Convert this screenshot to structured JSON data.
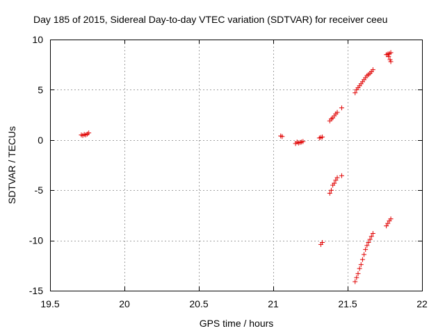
{
  "chart_data": {
    "type": "scatter",
    "title": "Day 185 of 2015, Sidereal Day-to-day VTEC variation (SDTVAR) for receiver ceeu",
    "xlabel": "GPS time / hours",
    "ylabel": "SDTVAR / TECUs",
    "xlim": [
      19.5,
      22
    ],
    "ylim": [
      -15,
      10
    ],
    "xticks": [
      19.5,
      20,
      20.5,
      21,
      21.5,
      22
    ],
    "xtick_labels": [
      "19.5",
      "20",
      "20.5",
      "21",
      "21.5",
      "22"
    ],
    "yticks": [
      -15,
      -10,
      -5,
      0,
      5,
      10
    ],
    "ytick_labels": [
      "-15",
      "-10",
      "-5",
      "0",
      "5",
      "10"
    ],
    "grid": true,
    "marker": "+",
    "marker_color": "#e00000",
    "series": [
      {
        "name": "SDTVAR",
        "points": [
          [
            19.71,
            0.5
          ],
          [
            19.72,
            0.45
          ],
          [
            19.73,
            0.55
          ],
          [
            19.74,
            0.5
          ],
          [
            19.75,
            0.6
          ],
          [
            19.76,
            0.7
          ],
          [
            21.05,
            0.4
          ],
          [
            21.06,
            0.35
          ],
          [
            21.15,
            -0.35
          ],
          [
            21.16,
            -0.2
          ],
          [
            21.17,
            -0.3
          ],
          [
            21.18,
            -0.25
          ],
          [
            21.19,
            -0.2
          ],
          [
            21.2,
            -0.15
          ],
          [
            21.31,
            0.2
          ],
          [
            21.32,
            0.25
          ],
          [
            21.33,
            0.3
          ],
          [
            21.38,
            1.9
          ],
          [
            21.39,
            2.1
          ],
          [
            21.4,
            2.2
          ],
          [
            21.41,
            2.4
          ],
          [
            21.42,
            2.6
          ],
          [
            21.43,
            2.75
          ],
          [
            21.46,
            3.2
          ],
          [
            21.55,
            4.7
          ],
          [
            21.56,
            5.0
          ],
          [
            21.57,
            5.2
          ],
          [
            21.58,
            5.4
          ],
          [
            21.59,
            5.6
          ],
          [
            21.6,
            5.8
          ],
          [
            21.61,
            6.0
          ],
          [
            21.62,
            6.2
          ],
          [
            21.63,
            6.4
          ],
          [
            21.64,
            6.5
          ],
          [
            21.65,
            6.65
          ],
          [
            21.66,
            6.8
          ],
          [
            21.67,
            7.0
          ],
          [
            21.76,
            8.5
          ],
          [
            21.77,
            8.55
          ],
          [
            21.78,
            8.6
          ],
          [
            21.79,
            8.7
          ],
          [
            21.775,
            8.3
          ],
          [
            21.785,
            8.0
          ],
          [
            21.79,
            7.8
          ],
          [
            21.38,
            -5.3
          ],
          [
            21.39,
            -5.0
          ],
          [
            21.4,
            -4.5
          ],
          [
            21.41,
            -4.3
          ],
          [
            21.42,
            -4.0
          ],
          [
            21.43,
            -3.75
          ],
          [
            21.46,
            -3.55
          ],
          [
            21.32,
            -10.4
          ],
          [
            21.33,
            -10.2
          ],
          [
            21.55,
            -14.1
          ],
          [
            21.56,
            -13.7
          ],
          [
            21.57,
            -13.3
          ],
          [
            21.58,
            -12.8
          ],
          [
            21.59,
            -12.4
          ],
          [
            21.6,
            -11.9
          ],
          [
            21.61,
            -11.4
          ],
          [
            21.62,
            -10.9
          ],
          [
            21.63,
            -10.5
          ],
          [
            21.64,
            -10.2
          ],
          [
            21.65,
            -9.9
          ],
          [
            21.66,
            -9.6
          ],
          [
            21.67,
            -9.3
          ],
          [
            21.76,
            -8.55
          ],
          [
            21.77,
            -8.3
          ],
          [
            21.78,
            -8.05
          ],
          [
            21.79,
            -7.85
          ]
        ]
      }
    ]
  }
}
